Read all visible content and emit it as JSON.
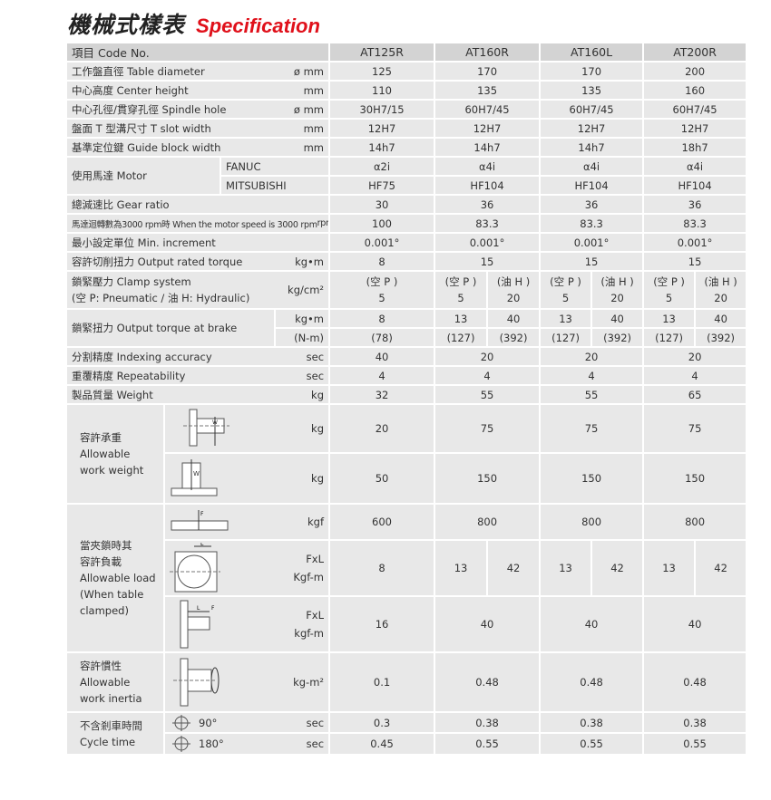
{
  "title": {
    "zh": "機械式樣表",
    "en": "Specification"
  },
  "header": {
    "label": "項目 Code No.",
    "models": [
      "AT125R",
      "AT160R",
      "AT160L",
      "AT200R"
    ]
  },
  "rows": [
    {
      "label": "工作盤直徑 Table diameter",
      "unit": "ø mm",
      "values": [
        "125",
        "170",
        "170",
        "200"
      ]
    },
    {
      "label": "中心高度 Center height",
      "unit": "mm",
      "values": [
        "110",
        "135",
        "135",
        "160"
      ]
    },
    {
      "label": "中心孔徑/貫穿孔徑 Spindle hole",
      "unit": "ø mm",
      "values": [
        "30H7/15",
        "60H7/45",
        "60H7/45",
        "60H7/45"
      ]
    },
    {
      "label": "盤面 T 型溝尺寸 T slot width",
      "unit": "mm",
      "values": [
        "12H7",
        "12H7",
        "12H7",
        "12H7"
      ]
    },
    {
      "label": "基準定位鍵 Guide block width",
      "unit": "mm",
      "values": [
        "14h7",
        "14h7",
        "14h7",
        "18h7"
      ]
    }
  ],
  "motor": {
    "label": "使用馬達 Motor",
    "fanuc": {
      "label": "FANUC",
      "values": [
        "α2i",
        "α4i",
        "α4i",
        "α4i"
      ]
    },
    "mitsubishi": {
      "label": "MITSUBISHI",
      "values": [
        "HF75",
        "HF104",
        "HF104",
        "HF104"
      ]
    }
  },
  "rows2": [
    {
      "label": "總減速比 Gear ratio",
      "unit": "",
      "values": [
        "30",
        "36",
        "36",
        "36"
      ]
    },
    {
      "label": "馬達迴轉數為3000 rpm時 When the motor speed is 3000 rpm",
      "unit": "rpm",
      "values": [
        "100",
        "83.3",
        "83.3",
        "83.3"
      ]
    },
    {
      "label": "最小設定單位 Min. increment",
      "unit": "",
      "values": [
        "0.001°",
        "0.001°",
        "0.001°",
        "0.001°"
      ]
    },
    {
      "label": "容許切削扭力 Output rated torque",
      "unit": "kg•m",
      "values": [
        "8",
        "15",
        "15",
        "15"
      ]
    }
  ],
  "clamp": {
    "label1": "鎖緊壓力  Clamp system",
    "label2": "(空 P: Pneumatic / 油 H: Hydraulic)",
    "unit": "kg/cm²",
    "p_label": "(空 P )",
    "h_label": "(油 H )",
    "at125r": "5",
    "p": "5",
    "h": "20"
  },
  "brake": {
    "label": "鎖緊扭力 Output torque at brake",
    "unit1": "kg•m",
    "unit2": "(N-m)",
    "at125r_1": "8",
    "at125r_2": "(78)",
    "p1": "13",
    "h1": "40",
    "p2": "(127)",
    "h2": "(392)"
  },
  "rows3": [
    {
      "label": "分割精度 Indexing accuracy",
      "unit": "sec",
      "values": [
        "40",
        "20",
        "20",
        "20"
      ]
    },
    {
      "label": "重覆精度 Repeatability",
      "unit": "sec",
      "values": [
        "4",
        "4",
        "4",
        "4"
      ]
    },
    {
      "label": "製品質量 Weight",
      "unit": "kg",
      "values": [
        "32",
        "55",
        "55",
        "65"
      ]
    }
  ],
  "work_weight": {
    "label_zh": "容許承重",
    "label_en1": "Allowable",
    "label_en2": "work weight",
    "rows": [
      {
        "unit": "kg",
        "values": [
          "20",
          "75",
          "75",
          "75"
        ]
      },
      {
        "unit": "kg",
        "values": [
          "50",
          "150",
          "150",
          "150"
        ]
      }
    ]
  },
  "load": {
    "label_zh1": "當夾鎖時其",
    "label_zh2": "容許負載",
    "label_en1": "Allowable load",
    "label_en2": "(When table",
    "label_en3": "clamped)",
    "row1": {
      "unit": "kgf",
      "values": [
        "600",
        "800",
        "800",
        "800"
      ]
    },
    "row2": {
      "unit1": "FxL",
      "unit2": "Kgf-m",
      "at125r": "8",
      "p": "13",
      "h": "42"
    },
    "row3": {
      "unit1": "FxL",
      "unit2": "kgf-m",
      "values": [
        "16",
        "40",
        "40",
        "40"
      ]
    }
  },
  "inertia": {
    "label_zh": "容許慣性",
    "label_en1": "Allowable",
    "label_en2": "work inertia",
    "unit": "kg-m²",
    "values": [
      "0.1",
      "0.48",
      "0.48",
      "0.48"
    ]
  },
  "cycle": {
    "label_zh": "不含剎車時間",
    "label_en": "Cycle time",
    "rows": [
      {
        "angle": "90°",
        "unit": "sec",
        "values": [
          "0.3",
          "0.38",
          "0.38",
          "0.38"
        ]
      },
      {
        "angle": "180°",
        "unit": "sec",
        "values": [
          "0.45",
          "0.55",
          "0.55",
          "0.55"
        ]
      }
    ]
  },
  "colors": {
    "title_red": "#e0101a",
    "cell": "#e8e8e8",
    "header": "#d3d3d3"
  }
}
